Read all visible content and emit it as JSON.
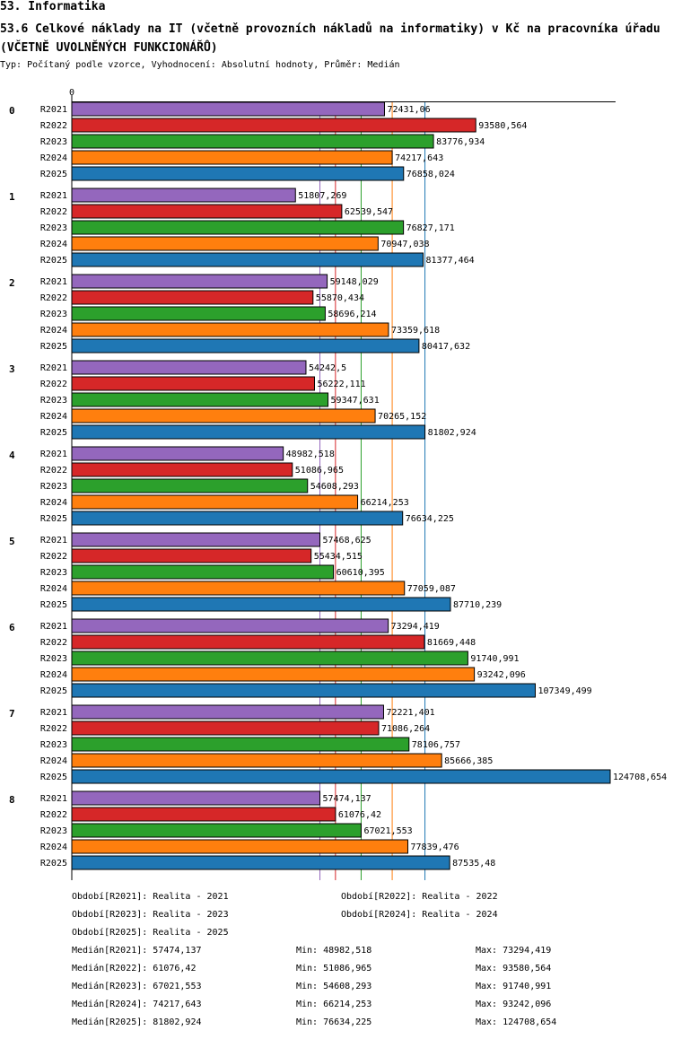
{
  "header": {
    "section": "53. Informatika",
    "title": "53.6 Celkové náklady na IT (včetně provozních nákladů na informatiky) v Kč na pracovníka úřadu (VČETNĚ UVOLNĚNÝCH FUNKCIONÁŘŮ)",
    "subtitle": "Typ: Počítaný podle vzorce, Vyhodnocení: Absolutní hodnoty, Průměr: Medián"
  },
  "chart_data": {
    "type": "bar",
    "orientation": "horizontal",
    "axis_zero_label": "0",
    "xlim": [
      0,
      124708.654
    ],
    "groups": [
      "0",
      "1",
      "2",
      "3",
      "4",
      "5",
      "6",
      "7",
      "8"
    ],
    "series": [
      {
        "name": "R2021",
        "color": "#9467bd",
        "values": [
          72431.06,
          51807.269,
          59148.029,
          54242.5,
          48982.518,
          57468.625,
          73294.419,
          72221.401,
          57474.137
        ],
        "labels": [
          "72431,06",
          "51807,269",
          "59148,029",
          "54242,5",
          "48982,518",
          "57468,625",
          "73294,419",
          "72221,401",
          "57474,137"
        ]
      },
      {
        "name": "R2022",
        "color": "#d62728",
        "values": [
          93580.564,
          62539.547,
          55870.434,
          56222.111,
          51086.965,
          55434.515,
          81669.448,
          71086.264,
          61076.42
        ],
        "labels": [
          "93580,564",
          "62539,547",
          "55870,434",
          "56222,111",
          "51086,965",
          "55434,515",
          "81669,448",
          "71086,264",
          "61076,42"
        ]
      },
      {
        "name": "R2023",
        "color": "#2ca02c",
        "values": [
          83776.934,
          76827.171,
          58696.214,
          59347.631,
          54608.293,
          60610.395,
          91740.991,
          78106.757,
          67021.553
        ],
        "labels": [
          "83776,934",
          "76827,171",
          "58696,214",
          "59347,631",
          "54608,293",
          "60610,395",
          "91740,991",
          "78106,757",
          "67021,553"
        ]
      },
      {
        "name": "R2024",
        "color": "#ff7f0e",
        "values": [
          74217.643,
          70947.038,
          73359.618,
          70265.152,
          66214.253,
          77059.087,
          93242.096,
          85666.385,
          77839.476
        ],
        "labels": [
          "74217,643",
          "70947,038",
          "73359,618",
          "70265,152",
          "66214,253",
          "77059,087",
          "93242,096",
          "85666,385",
          "77839,476"
        ]
      },
      {
        "name": "R2025",
        "color": "#1f77b4",
        "values": [
          76858.024,
          81377.464,
          80417.632,
          81802.924,
          76634.225,
          87710.239,
          107349.499,
          124708.654,
          87535.48
        ],
        "labels": [
          "76858,024",
          "81377,464",
          "80417,632",
          "81802,924",
          "76634,225",
          "87710,239",
          "107349,499",
          "124708,654",
          "87535,48"
        ]
      }
    ],
    "median_values": [
      57474.137,
      61076.42,
      67021.553,
      74217.643,
      81802.924
    ]
  },
  "legend": {
    "periods": [
      "Období[R2021]: Realita - 2021",
      "Období[R2022]: Realita - 2022",
      "Období[R2023]: Realita - 2023",
      "Období[R2024]: Realita - 2024",
      "Období[R2025]: Realita - 2025"
    ],
    "stats": [
      {
        "median": "Medián[R2021]: 57474,137",
        "min": "Min: 48982,518",
        "max": "Max: 73294,419"
      },
      {
        "median": "Medián[R2022]: 61076,42",
        "min": "Min: 51086,965",
        "max": "Max: 93580,564"
      },
      {
        "median": "Medián[R2023]: 67021,553",
        "min": "Min: 54608,293",
        "max": "Max: 91740,991"
      },
      {
        "median": "Medián[R2024]: 74217,643",
        "min": "Min: 66214,253",
        "max": "Max: 93242,096"
      },
      {
        "median": "Medián[R2025]: 81802,924",
        "min": "Min: 76634,225",
        "max": "Max: 124708,654"
      }
    ]
  }
}
